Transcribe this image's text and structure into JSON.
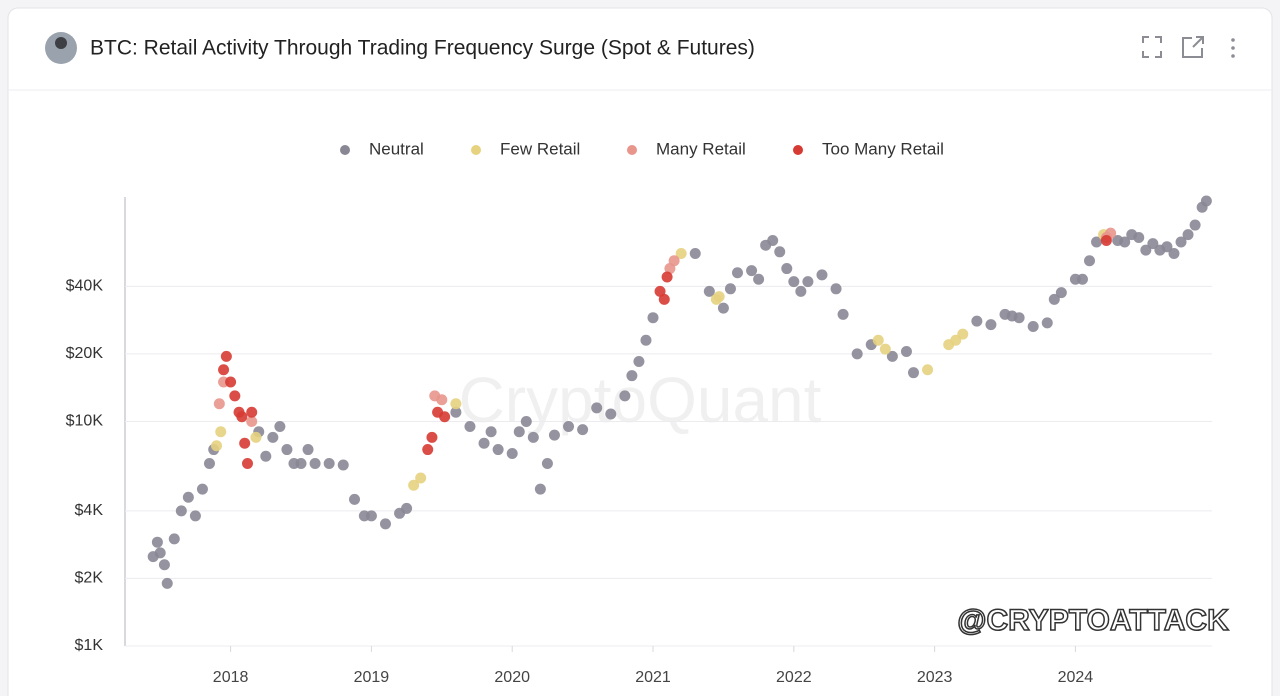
{
  "header": {
    "title": "BTC: Retail Activity Through Trading Frequency Surge (Spot & Futures)"
  },
  "chart_data": {
    "type": "scatter",
    "watermark": "CryptoQuant",
    "credit": "@CRYPTOATTACK",
    "log_y": true,
    "grid": true,
    "legend": "top",
    "xlim": [
      2017.25,
      2024.97
    ],
    "xticks": [
      2018,
      2019,
      2020,
      2021,
      2022,
      2023,
      2024
    ],
    "ylim": [
      1000,
      100000
    ],
    "yticks": [
      {
        "value": 1000,
        "label": "$1K"
      },
      {
        "value": 2000,
        "label": "$2K"
      },
      {
        "value": 4000,
        "label": "$4K"
      },
      {
        "value": 10000,
        "label": "$10K"
      },
      {
        "value": 20000,
        "label": "$20K"
      },
      {
        "value": 40000,
        "label": "$40K"
      }
    ],
    "series": [
      {
        "name": "Neutral",
        "color": "#8a8795",
        "x": [
          2017.45,
          2017.48,
          2017.5,
          2017.53,
          2017.55,
          2017.6,
          2017.65,
          2017.7,
          2017.75,
          2017.8,
          2017.85,
          2017.88,
          2018.2,
          2018.25,
          2018.3,
          2018.35,
          2018.4,
          2018.45,
          2018.5,
          2018.55,
          2018.6,
          2018.7,
          2018.8,
          2018.88,
          2018.95,
          2019.0,
          2019.1,
          2019.2,
          2019.25,
          2019.6,
          2019.7,
          2019.8,
          2019.85,
          2019.9,
          2020.0,
          2020.05,
          2020.1,
          2020.15,
          2020.2,
          2020.25,
          2020.3,
          2020.4,
          2020.5,
          2020.6,
          2020.7,
          2020.8,
          2020.85,
          2020.9,
          2020.95,
          2021.0,
          2021.3,
          2021.4,
          2021.5,
          2021.55,
          2021.6,
          2021.7,
          2021.75,
          2021.8,
          2021.85,
          2021.9,
          2021.95,
          2022.0,
          2022.05,
          2022.1,
          2022.2,
          2022.3,
          2022.35,
          2022.45,
          2022.55,
          2022.7,
          2022.8,
          2022.85,
          2023.3,
          2023.4,
          2023.5,
          2023.55,
          2023.6,
          2023.7,
          2023.8,
          2023.85,
          2023.9,
          2024.0,
          2024.05,
          2024.1,
          2024.15,
          2024.3,
          2024.35,
          2024.4,
          2024.45,
          2024.5,
          2024.55,
          2024.6,
          2024.65,
          2024.7,
          2024.75,
          2024.8,
          2024.85,
          2024.9,
          2024.93
        ],
        "values": [
          2500,
          2900,
          2600,
          2300,
          1900,
          3000,
          4000,
          4600,
          3800,
          5000,
          6500,
          7500,
          9000,
          7000,
          8500,
          9500,
          7500,
          6500,
          6500,
          7500,
          6500,
          6500,
          6400,
          4500,
          3800,
          3800,
          3500,
          3900,
          4100,
          11000,
          9500,
          8000,
          9000,
          7500,
          7200,
          9000,
          10000,
          8500,
          5000,
          6500,
          8700,
          9500,
          9200,
          11500,
          10800,
          13000,
          16000,
          18500,
          23000,
          29000,
          56000,
          38000,
          32000,
          39000,
          46000,
          47000,
          43000,
          61000,
          64000,
          57000,
          48000,
          42000,
          38000,
          42000,
          45000,
          39000,
          30000,
          20000,
          22000,
          19500,
          20500,
          16500,
          28000,
          27000,
          30000,
          29500,
          29000,
          26500,
          27500,
          35000,
          37500,
          43000,
          43000,
          52000,
          63000,
          64000,
          63000,
          68000,
          66000,
          58000,
          62000,
          58000,
          60000,
          56000,
          63000,
          68000,
          75000,
          90000,
          96000
        ]
      },
      {
        "name": "Few Retail",
        "color": "#e6d27f",
        "x": [
          2017.9,
          2017.93,
          2018.18,
          2019.3,
          2019.35,
          2019.6,
          2021.2,
          2021.45,
          2021.47,
          2022.6,
          2022.65,
          2022.95,
          2023.1,
          2023.15,
          2023.2,
          2024.2
        ],
        "values": [
          7800,
          9000,
          8500,
          5200,
          5600,
          12000,
          56000,
          35000,
          36000,
          23000,
          21000,
          17000,
          22000,
          23000,
          24500,
          68000
        ]
      },
      {
        "name": "Many Retail",
        "color": "#e8958c",
        "x": [
          2017.92,
          2017.95,
          2018.15,
          2019.45,
          2019.5,
          2021.12,
          2021.15,
          2024.22,
          2024.25
        ],
        "values": [
          12000,
          15000,
          10000,
          13000,
          12500,
          48000,
          52000,
          66000,
          69000
        ]
      },
      {
        "name": "Too Many Retail",
        "color": "#d63b33",
        "x": [
          2017.95,
          2017.97,
          2018.0,
          2018.03,
          2018.06,
          2018.08,
          2018.1,
          2018.12,
          2018.15,
          2019.4,
          2019.43,
          2019.47,
          2019.52,
          2021.05,
          2021.08,
          2021.1,
          2024.22
        ],
        "values": [
          17000,
          19500,
          15000,
          13000,
          11000,
          10500,
          8000,
          6500,
          11000,
          7500,
          8500,
          11000,
          10500,
          38000,
          35000,
          44000,
          64000
        ]
      }
    ]
  }
}
